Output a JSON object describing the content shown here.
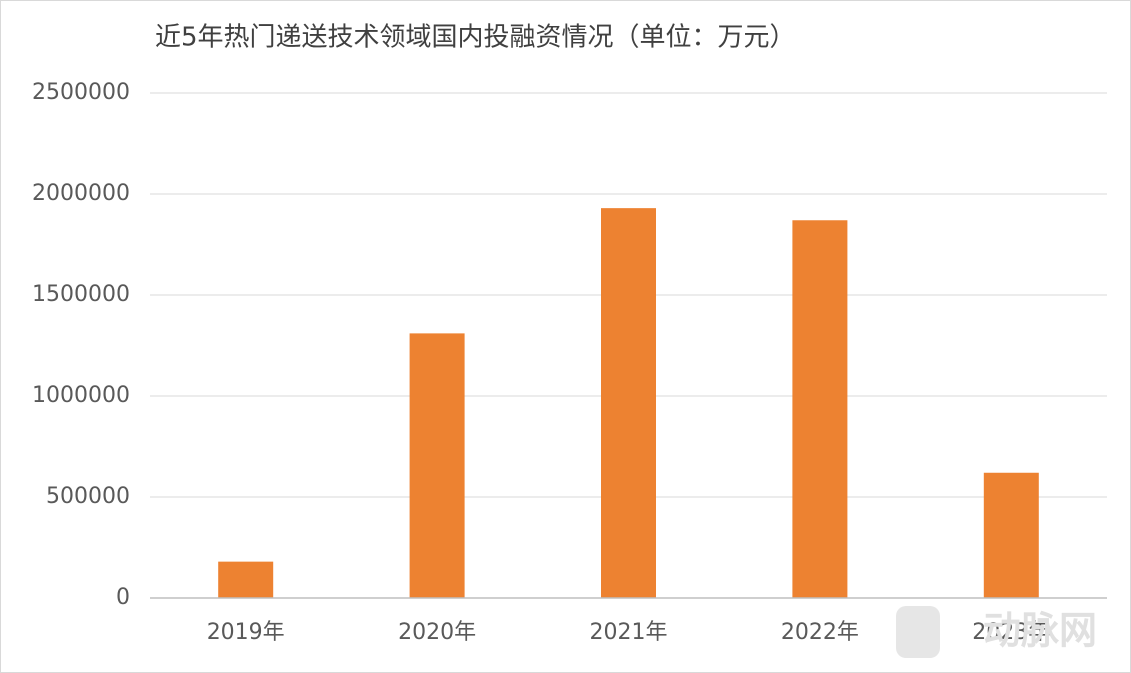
{
  "chart_data": {
    "type": "bar",
    "title": "近5年热门递送技术领域国内投融资情况（单位：万元）",
    "categories": [
      "2019年",
      "2020年",
      "2021年",
      "2022年",
      "2023年"
    ],
    "values": [
      180000,
      1310000,
      1930000,
      1870000,
      620000
    ],
    "color": "#ed8231",
    "ylim": [
      0,
      2500000
    ],
    "yticks": [
      0,
      500000,
      1000000,
      1500000,
      2000000,
      2500000
    ],
    "grid": true
  },
  "watermark": "动脉网"
}
